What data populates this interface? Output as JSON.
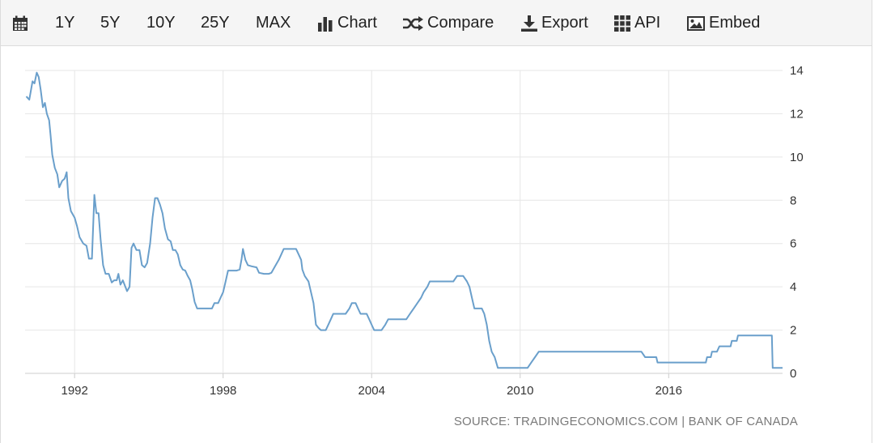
{
  "toolbar": {
    "items": [
      {
        "key": "calendar",
        "icon": "calendar-icon",
        "label": ""
      },
      {
        "key": "1y",
        "icon": "",
        "label": "1Y"
      },
      {
        "key": "5y",
        "icon": "",
        "label": "5Y"
      },
      {
        "key": "10y",
        "icon": "",
        "label": "10Y"
      },
      {
        "key": "25y",
        "icon": "",
        "label": "25Y"
      },
      {
        "key": "max",
        "icon": "",
        "label": "MAX"
      },
      {
        "key": "chart",
        "icon": "bar-chart-icon",
        "label": "Chart"
      },
      {
        "key": "compare",
        "icon": "shuffle-icon",
        "label": "Compare"
      },
      {
        "key": "export",
        "icon": "download-icon",
        "label": "Export"
      },
      {
        "key": "api",
        "icon": "grid-icon",
        "label": "API"
      },
      {
        "key": "embed",
        "icon": "image-icon",
        "label": "Embed"
      }
    ]
  },
  "source_text": "SOURCE: TRADINGECONOMICS.COM | BANK OF CANADA",
  "colors": {
    "line": "#6a9fcb",
    "grid": "#e6e6e6",
    "axis_text": "#333333",
    "toolbar_bg": "#f5f5f5"
  },
  "chart_data": {
    "type": "line",
    "title": "",
    "xlabel": "",
    "ylabel": "",
    "x_ticks": [
      "1992",
      "1998",
      "2004",
      "2010",
      "2016"
    ],
    "y_ticks": [
      0,
      2,
      4,
      6,
      8,
      10,
      12,
      14
    ],
    "ylim": [
      0,
      14
    ],
    "xlim": [
      1990.0,
      2020.6
    ],
    "grid": true,
    "series": [
      {
        "name": "",
        "points": [
          [
            1990.05,
            12.8
          ],
          [
            1990.17,
            12.65
          ],
          [
            1990.3,
            13.5
          ],
          [
            1990.38,
            13.4
          ],
          [
            1990.47,
            13.9
          ],
          [
            1990.55,
            13.7
          ],
          [
            1990.63,
            13.1
          ],
          [
            1990.72,
            12.3
          ],
          [
            1990.8,
            12.5
          ],
          [
            1990.88,
            12.0
          ],
          [
            1990.97,
            11.7
          ],
          [
            1991.03,
            11.0
          ],
          [
            1991.1,
            10.1
          ],
          [
            1991.2,
            9.5
          ],
          [
            1991.3,
            9.2
          ],
          [
            1991.38,
            8.6
          ],
          [
            1991.5,
            8.9
          ],
          [
            1991.6,
            9.0
          ],
          [
            1991.68,
            9.3
          ],
          [
            1991.75,
            8.1
          ],
          [
            1991.85,
            7.5
          ],
          [
            1992.0,
            7.2
          ],
          [
            1992.1,
            6.8
          ],
          [
            1992.2,
            6.3
          ],
          [
            1992.35,
            6.0
          ],
          [
            1992.48,
            5.9
          ],
          [
            1992.58,
            5.3
          ],
          [
            1992.7,
            5.3
          ],
          [
            1992.8,
            8.25
          ],
          [
            1992.88,
            7.4
          ],
          [
            1992.97,
            7.4
          ],
          [
            1993.05,
            6.2
          ],
          [
            1993.15,
            5.0
          ],
          [
            1993.25,
            4.6
          ],
          [
            1993.38,
            4.6
          ],
          [
            1993.5,
            4.2
          ],
          [
            1993.6,
            4.3
          ],
          [
            1993.7,
            4.3
          ],
          [
            1993.77,
            4.6
          ],
          [
            1993.85,
            4.1
          ],
          [
            1993.95,
            4.3
          ],
          [
            1994.05,
            4.0
          ],
          [
            1994.12,
            3.8
          ],
          [
            1994.22,
            4.0
          ],
          [
            1994.3,
            5.8
          ],
          [
            1994.38,
            6.0
          ],
          [
            1994.5,
            5.7
          ],
          [
            1994.62,
            5.7
          ],
          [
            1994.72,
            5.0
          ],
          [
            1994.83,
            4.9
          ],
          [
            1994.93,
            5.1
          ],
          [
            1995.05,
            6.0
          ],
          [
            1995.15,
            7.2
          ],
          [
            1995.25,
            8.1
          ],
          [
            1995.35,
            8.1
          ],
          [
            1995.45,
            7.8
          ],
          [
            1995.55,
            7.4
          ],
          [
            1995.65,
            6.7
          ],
          [
            1995.77,
            6.2
          ],
          [
            1995.88,
            6.1
          ],
          [
            1995.97,
            5.7
          ],
          [
            1996.07,
            5.7
          ],
          [
            1996.17,
            5.5
          ],
          [
            1996.27,
            5.0
          ],
          [
            1996.37,
            4.8
          ],
          [
            1996.47,
            4.75
          ],
          [
            1996.57,
            4.5
          ],
          [
            1996.67,
            4.3
          ],
          [
            1996.75,
            3.9
          ],
          [
            1996.85,
            3.3
          ],
          [
            1996.95,
            3.0
          ],
          [
            1997.1,
            3.0
          ],
          [
            1997.3,
            3.0
          ],
          [
            1997.45,
            3.0
          ],
          [
            1997.55,
            3.0
          ],
          [
            1997.65,
            3.25
          ],
          [
            1997.8,
            3.25
          ],
          [
            1997.9,
            3.5
          ],
          [
            1998.0,
            3.75
          ],
          [
            1998.1,
            4.25
          ],
          [
            1998.2,
            4.75
          ],
          [
            1998.4,
            4.75
          ],
          [
            1998.55,
            4.75
          ],
          [
            1998.67,
            4.8
          ],
          [
            1998.75,
            5.3
          ],
          [
            1998.8,
            5.75
          ],
          [
            1998.9,
            5.25
          ],
          [
            1999.0,
            5.0
          ],
          [
            1999.15,
            4.95
          ],
          [
            1999.35,
            4.9
          ],
          [
            1999.45,
            4.65
          ],
          [
            1999.65,
            4.6
          ],
          [
            1999.85,
            4.6
          ],
          [
            1999.95,
            4.65
          ],
          [
            2000.1,
            4.95
          ],
          [
            2000.25,
            5.25
          ],
          [
            2000.35,
            5.5
          ],
          [
            2000.45,
            5.75
          ],
          [
            2000.6,
            5.75
          ],
          [
            2000.7,
            5.75
          ],
          [
            2000.8,
            5.75
          ],
          [
            2000.95,
            5.75
          ],
          [
            2001.05,
            5.5
          ],
          [
            2001.15,
            5.25
          ],
          [
            2001.2,
            4.8
          ],
          [
            2001.3,
            4.5
          ],
          [
            2001.45,
            4.25
          ],
          [
            2001.55,
            3.75
          ],
          [
            2001.65,
            3.25
          ],
          [
            2001.75,
            2.25
          ],
          [
            2001.85,
            2.1
          ],
          [
            2001.95,
            2.0
          ],
          [
            2002.05,
            2.0
          ],
          [
            2002.15,
            2.0
          ],
          [
            2002.25,
            2.25
          ],
          [
            2002.35,
            2.5
          ],
          [
            2002.45,
            2.75
          ],
          [
            2002.6,
            2.75
          ],
          [
            2002.8,
            2.75
          ],
          [
            2002.95,
            2.75
          ],
          [
            2003.1,
            3.0
          ],
          [
            2003.2,
            3.25
          ],
          [
            2003.35,
            3.25
          ],
          [
            2003.45,
            3.0
          ],
          [
            2003.55,
            2.75
          ],
          [
            2003.7,
            2.75
          ],
          [
            2003.8,
            2.75
          ],
          [
            2003.9,
            2.5
          ],
          [
            2004.0,
            2.25
          ],
          [
            2004.1,
            2.0
          ],
          [
            2004.2,
            2.0
          ],
          [
            2004.3,
            2.0
          ],
          [
            2004.4,
            2.0
          ],
          [
            2004.55,
            2.25
          ],
          [
            2004.67,
            2.5
          ],
          [
            2004.85,
            2.5
          ],
          [
            2005.0,
            2.5
          ],
          [
            2005.2,
            2.5
          ],
          [
            2005.4,
            2.5
          ],
          [
            2005.55,
            2.75
          ],
          [
            2005.7,
            3.0
          ],
          [
            2005.85,
            3.25
          ],
          [
            2006.0,
            3.5
          ],
          [
            2006.1,
            3.75
          ],
          [
            2006.25,
            4.0
          ],
          [
            2006.35,
            4.25
          ],
          [
            2006.5,
            4.25
          ],
          [
            2006.7,
            4.25
          ],
          [
            2006.9,
            4.25
          ],
          [
            2007.1,
            4.25
          ],
          [
            2007.3,
            4.25
          ],
          [
            2007.45,
            4.5
          ],
          [
            2007.6,
            4.5
          ],
          [
            2007.7,
            4.5
          ],
          [
            2007.85,
            4.25
          ],
          [
            2007.95,
            4.0
          ],
          [
            2008.05,
            3.5
          ],
          [
            2008.15,
            3.0
          ],
          [
            2008.3,
            3.0
          ],
          [
            2008.45,
            3.0
          ],
          [
            2008.55,
            2.75
          ],
          [
            2008.65,
            2.25
          ],
          [
            2008.75,
            1.5
          ],
          [
            2008.85,
            1.0
          ],
          [
            2008.97,
            0.75
          ],
          [
            2009.1,
            0.25
          ],
          [
            2009.3,
            0.25
          ],
          [
            2009.5,
            0.25
          ],
          [
            2009.7,
            0.25
          ],
          [
            2009.9,
            0.25
          ],
          [
            2010.1,
            0.25
          ],
          [
            2010.3,
            0.25
          ],
          [
            2010.45,
            0.5
          ],
          [
            2010.6,
            0.75
          ],
          [
            2010.75,
            1.0
          ],
          [
            2011.0,
            1.0
          ],
          [
            2011.5,
            1.0
          ],
          [
            2012.0,
            1.0
          ],
          [
            2012.5,
            1.0
          ],
          [
            2013.0,
            1.0
          ],
          [
            2013.5,
            1.0
          ],
          [
            2014.0,
            1.0
          ],
          [
            2014.5,
            1.0
          ],
          [
            2014.9,
            1.0
          ],
          [
            2015.05,
            0.75
          ],
          [
            2015.3,
            0.75
          ],
          [
            2015.5,
            0.75
          ],
          [
            2015.55,
            0.5
          ],
          [
            2015.8,
            0.5
          ],
          [
            2016.2,
            0.5
          ],
          [
            2016.6,
            0.5
          ],
          [
            2017.0,
            0.5
          ],
          [
            2017.5,
            0.5
          ],
          [
            2017.55,
            0.75
          ],
          [
            2017.7,
            0.75
          ],
          [
            2017.75,
            1.0
          ],
          [
            2017.95,
            1.0
          ],
          [
            2018.05,
            1.25
          ],
          [
            2018.3,
            1.25
          ],
          [
            2018.5,
            1.25
          ],
          [
            2018.55,
            1.5
          ],
          [
            2018.75,
            1.5
          ],
          [
            2018.8,
            1.75
          ],
          [
            2019.0,
            1.75
          ],
          [
            2019.5,
            1.75
          ],
          [
            2019.9,
            1.75
          ],
          [
            2020.17,
            1.75
          ],
          [
            2020.2,
            0.25
          ],
          [
            2020.4,
            0.25
          ],
          [
            2020.6,
            0.25
          ]
        ]
      }
    ]
  }
}
